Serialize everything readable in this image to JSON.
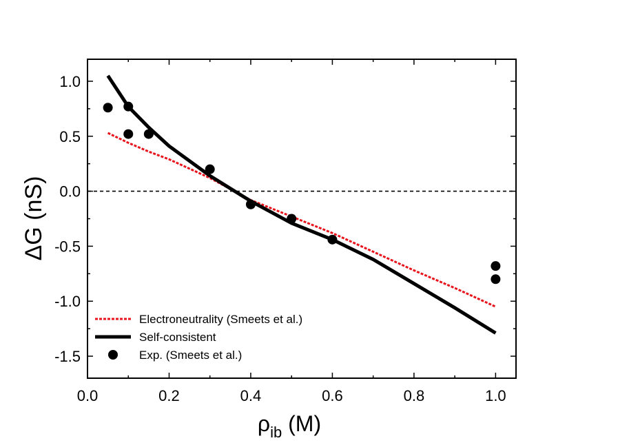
{
  "chart_data": {
    "type": "line",
    "xlim": [
      0.0,
      1.05
    ],
    "ylim": [
      -1.7,
      1.2
    ],
    "x_ticks": [
      0.0,
      0.2,
      0.4,
      0.6,
      0.8,
      1.0
    ],
    "x_tick_labels": [
      "0.0",
      "0.2",
      "0.4",
      "0.6",
      "0.8",
      "1.0"
    ],
    "y_ticks": [
      1.0,
      0.5,
      0.0,
      -0.5,
      -1.0,
      -1.5
    ],
    "y_tick_labels": [
      "1.0",
      "0.5",
      "0.0",
      "-0.5",
      "-1.0",
      "-1.5"
    ],
    "xlabel": {
      "symbol": "ρ",
      "subscript": "ib",
      "unit": " (M)"
    },
    "ylabel": "ΔG (nS)",
    "reference_line": {
      "y": 0.0,
      "style": "dashed",
      "color": "#000000"
    },
    "series": [
      {
        "name": "Electroneutrality (Smeets et al.)",
        "kind": "line",
        "style": "dotted",
        "color": "#e8141b",
        "x": [
          0.05,
          0.1,
          0.15,
          0.2,
          0.3,
          0.4,
          0.5,
          0.6,
          0.7,
          0.8,
          0.9,
          1.0
        ],
        "y": [
          0.53,
          0.44,
          0.36,
          0.29,
          0.12,
          -0.08,
          -0.23,
          -0.38,
          -0.55,
          -0.72,
          -0.88,
          -1.05
        ]
      },
      {
        "name": "Self-consistent",
        "kind": "line",
        "style": "solid",
        "color": "#000000",
        "x": [
          0.05,
          0.1,
          0.15,
          0.2,
          0.3,
          0.4,
          0.5,
          0.6,
          0.7,
          0.8,
          0.9,
          1.0
        ],
        "y": [
          1.05,
          0.77,
          0.58,
          0.41,
          0.14,
          -0.09,
          -0.29,
          -0.44,
          -0.62,
          -0.84,
          -1.06,
          -1.29
        ]
      },
      {
        "name": "Exp. (Smeets et al.)",
        "kind": "scatter",
        "color": "#000000",
        "x": [
          0.05,
          0.1,
          0.1,
          0.15,
          0.3,
          0.4,
          0.5,
          0.6,
          1.0,
          1.0
        ],
        "y": [
          0.76,
          0.77,
          0.52,
          0.52,
          0.2,
          -0.12,
          -0.25,
          -0.44,
          -0.68,
          -0.8
        ]
      }
    ],
    "legend_position": "bottom-left"
  }
}
